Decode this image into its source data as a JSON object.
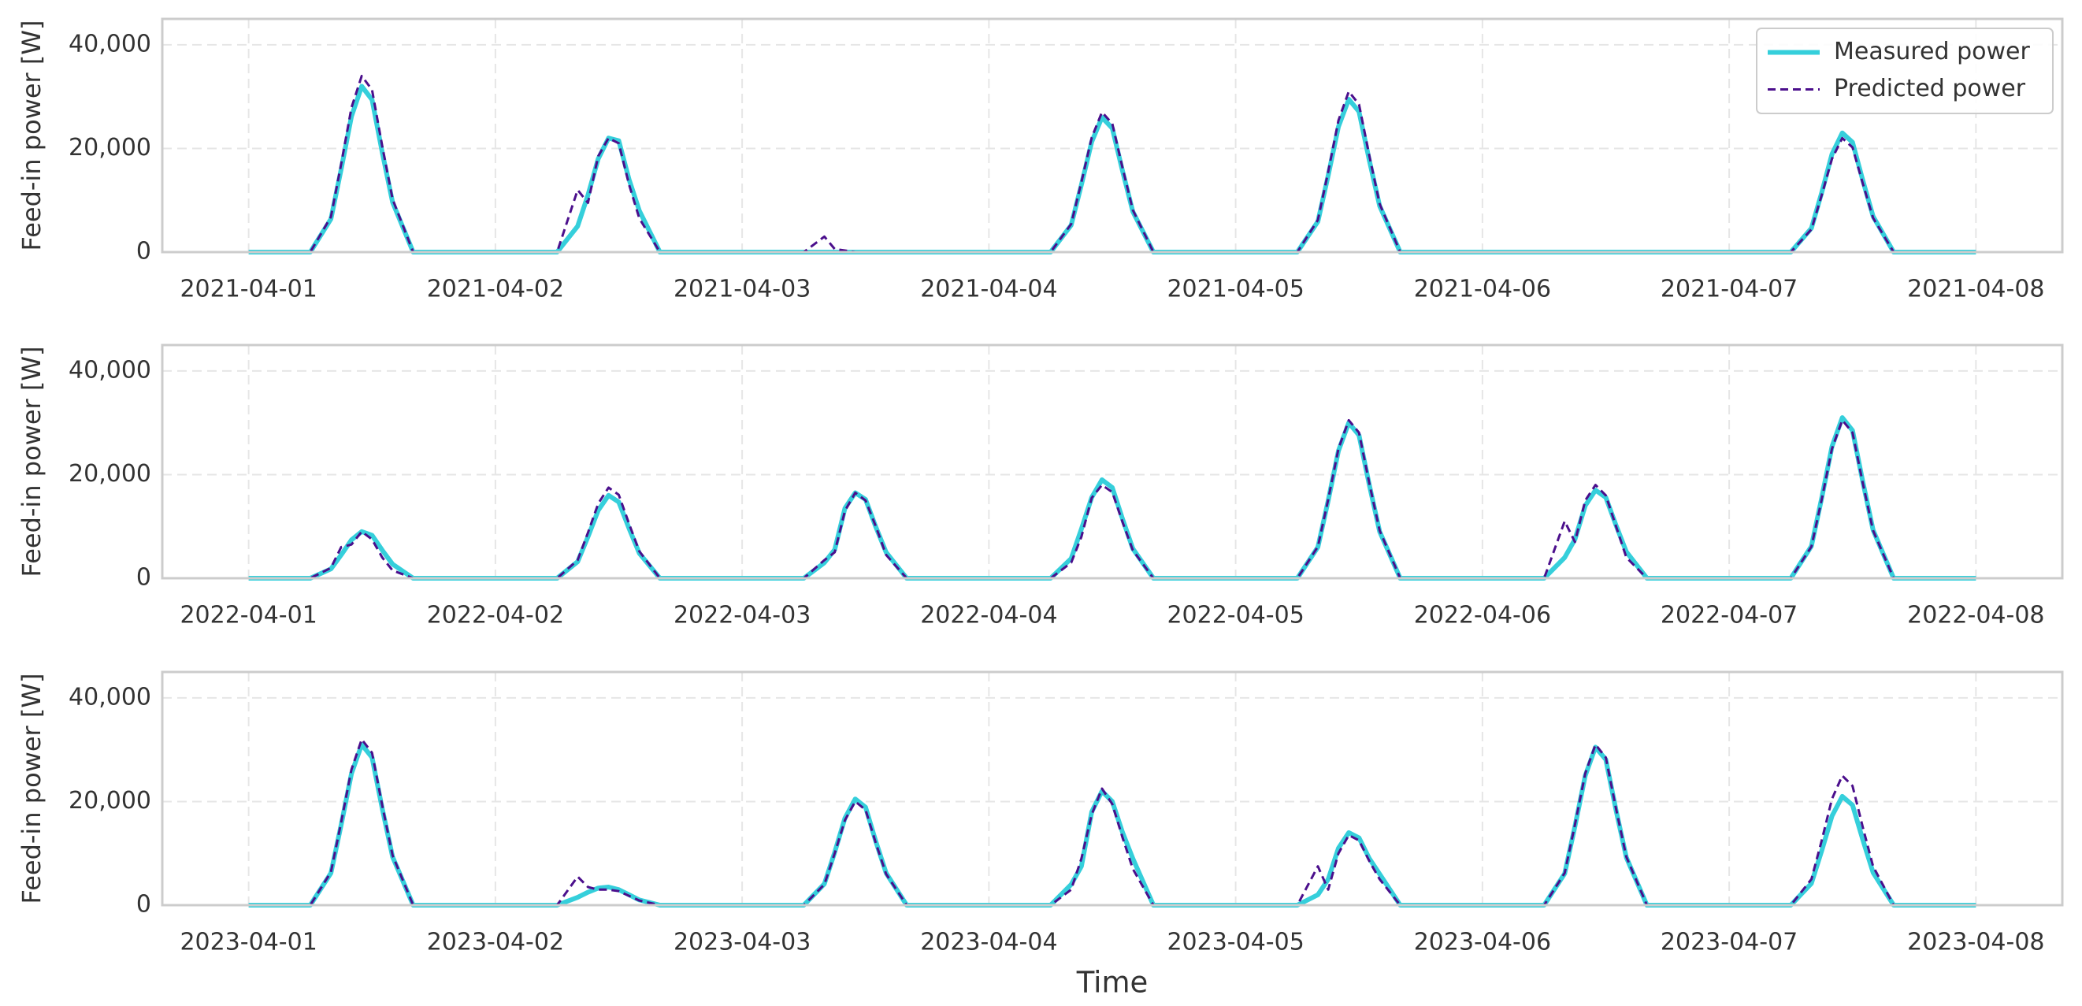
{
  "chart_data": [
    {
      "type": "line",
      "y_label": "Feed-in power [W]",
      "legend": "upper right",
      "grid": true,
      "x": [
        0,
        6,
        8,
        9,
        10,
        11,
        12,
        13,
        14,
        16,
        24,
        30,
        32,
        33,
        34,
        35,
        36,
        37,
        38,
        40,
        48,
        54,
        56,
        57,
        58,
        59,
        60,
        61,
        62,
        64,
        72,
        78,
        80,
        81,
        82,
        83,
        84,
        85,
        86,
        88,
        96,
        102,
        104,
        105,
        106,
        107,
        108,
        109,
        110,
        112,
        120,
        126,
        128,
        129,
        130,
        131,
        132,
        133,
        134,
        136,
        144,
        150,
        152,
        153,
        154,
        155,
        156,
        157,
        158,
        160,
        168
      ],
      "xlim": [
        -8.4,
        176.4
      ],
      "xticks": [
        {
          "value": 0,
          "label": "2021-04-01"
        },
        {
          "value": 24,
          "label": "2021-04-02"
        },
        {
          "value": 48,
          "label": "2021-04-03"
        },
        {
          "value": 72,
          "label": "2021-04-04"
        },
        {
          "value": 96,
          "label": "2021-04-05"
        },
        {
          "value": 120,
          "label": "2021-04-06"
        },
        {
          "value": 144,
          "label": "2021-04-07"
        },
        {
          "value": 168,
          "label": "2021-04-08"
        }
      ],
      "ylim": [
        0,
        45000
      ],
      "yticks": [
        0,
        {
          "value": 20000,
          "label": "20,000"
        },
        {
          "value": 40000,
          "label": "40,000"
        }
      ],
      "series": [
        {
          "name": "Measured power",
          "color": "#35cfdb",
          "linestyle": "solid",
          "values": [
            0,
            0,
            6400,
            16000,
            26200,
            32000,
            29400,
            19200,
            9600,
            0,
            0,
            0,
            5000,
            11000,
            18000,
            22000,
            21500,
            14000,
            8000,
            0,
            0,
            0,
            0,
            0,
            0,
            0,
            0,
            0,
            0,
            0,
            0,
            0,
            5200,
            13000,
            21300,
            26000,
            23900,
            15600,
            7800,
            0,
            0,
            0,
            5900,
            14800,
            24200,
            29500,
            27100,
            17700,
            8900,
            0,
            0,
            0,
            0,
            0,
            0,
            0,
            0,
            0,
            0,
            0,
            0,
            0,
            4600,
            11500,
            18900,
            23000,
            21200,
            13800,
            6900,
            0,
            0
          ]
        },
        {
          "name": "Predicted power",
          "color": "#4b0f8c",
          "linestyle": "dashed",
          "values": [
            0,
            0,
            6800,
            17000,
            27900,
            34000,
            31300,
            20400,
            10200,
            0,
            0,
            0,
            12000,
            9500,
            18500,
            22000,
            21000,
            13000,
            6500,
            0,
            0,
            0,
            3000,
            600,
            300,
            0,
            0,
            0,
            0,
            0,
            0,
            0,
            5400,
            13500,
            22100,
            27000,
            24800,
            16200,
            8100,
            0,
            0,
            0,
            6200,
            15500,
            25400,
            31000,
            28500,
            18600,
            9300,
            0,
            0,
            0,
            0,
            0,
            0,
            0,
            0,
            0,
            0,
            0,
            0,
            0,
            4400,
            11000,
            18000,
            22000,
            20200,
            13200,
            6600,
            0,
            0
          ]
        }
      ]
    },
    {
      "type": "line",
      "y_label": "Feed-in power [W]",
      "grid": true,
      "x": [
        0,
        6,
        8,
        9,
        10,
        11,
        12,
        13,
        14,
        16,
        24,
        30,
        32,
        33,
        34,
        35,
        36,
        37,
        38,
        40,
        48,
        54,
        56,
        57,
        58,
        59,
        60,
        61,
        62,
        64,
        72,
        78,
        80,
        81,
        82,
        83,
        84,
        85,
        86,
        88,
        96,
        102,
        104,
        105,
        106,
        107,
        108,
        109,
        110,
        112,
        120,
        126,
        128,
        129,
        130,
        131,
        132,
        133,
        134,
        136,
        144,
        150,
        152,
        153,
        154,
        155,
        156,
        157,
        158,
        160,
        168
      ],
      "xlim": [
        -8.4,
        176.4
      ],
      "xticks": [
        {
          "value": 0,
          "label": "2022-04-01"
        },
        {
          "value": 24,
          "label": "2022-04-02"
        },
        {
          "value": 48,
          "label": "2022-04-03"
        },
        {
          "value": 72,
          "label": "2022-04-04"
        },
        {
          "value": 96,
          "label": "2022-04-05"
        },
        {
          "value": 120,
          "label": "2022-04-06"
        },
        {
          "value": 144,
          "label": "2022-04-07"
        },
        {
          "value": 168,
          "label": "2022-04-08"
        }
      ],
      "ylim": [
        0,
        45000
      ],
      "yticks": [
        0,
        {
          "value": 20000,
          "label": "20,000"
        },
        {
          "value": 40000,
          "label": "40,000"
        }
      ],
      "series": [
        {
          "color": "#35cfdb",
          "linestyle": "solid",
          "values": [
            0,
            0,
            1800,
            4500,
            7400,
            9000,
            8300,
            5400,
            2700,
            0,
            0,
            0,
            3200,
            8000,
            13100,
            16000,
            14700,
            9600,
            4800,
            0,
            0,
            0,
            3000,
            5500,
            13500,
            16500,
            15200,
            9900,
            5000,
            0,
            0,
            0,
            3800,
            9500,
            15600,
            19000,
            17500,
            11400,
            5700,
            0,
            0,
            0,
            6000,
            15000,
            24600,
            30000,
            27600,
            18000,
            9000,
            0,
            0,
            0,
            4000,
            7500,
            14000,
            17000,
            15600,
            10200,
            5100,
            0,
            0,
            0,
            6200,
            15500,
            25400,
            31000,
            28500,
            18600,
            9300,
            0,
            0
          ]
        },
        {
          "color": "#4b0f8c",
          "linestyle": "dashed",
          "values": [
            0,
            0,
            2000,
            6000,
            6500,
            9000,
            7500,
            4000,
            1500,
            0,
            0,
            0,
            3500,
            8800,
            14400,
            17500,
            16100,
            10500,
            5200,
            0,
            0,
            0,
            3500,
            5000,
            13000,
            16500,
            15000,
            10000,
            4500,
            0,
            0,
            0,
            3000,
            8000,
            15500,
            18000,
            16600,
            10800,
            5400,
            0,
            0,
            0,
            6100,
            15200,
            25000,
            30500,
            28100,
            18300,
            9200,
            0,
            0,
            0,
            11000,
            7000,
            15000,
            18000,
            16000,
            10000,
            4000,
            0,
            0,
            0,
            6100,
            15200,
            25000,
            30500,
            28100,
            18300,
            9200,
            0,
            0
          ]
        }
      ]
    },
    {
      "type": "line",
      "y_label": "Feed-in power [W]",
      "x_label": "Time",
      "grid": true,
      "x": [
        0,
        6,
        8,
        9,
        10,
        11,
        12,
        13,
        14,
        16,
        24,
        30,
        32,
        33,
        34,
        35,
        36,
        37,
        38,
        40,
        48,
        54,
        56,
        57,
        58,
        59,
        60,
        61,
        62,
        64,
        72,
        78,
        80,
        81,
        82,
        83,
        84,
        85,
        86,
        88,
        96,
        102,
        104,
        105,
        106,
        107,
        108,
        109,
        110,
        112,
        120,
        126,
        128,
        129,
        130,
        131,
        132,
        133,
        134,
        136,
        144,
        150,
        152,
        153,
        154,
        155,
        156,
        157,
        158,
        160,
        168
      ],
      "xlim": [
        -8.4,
        176.4
      ],
      "xticks": [
        {
          "value": 0,
          "label": "2023-04-01"
        },
        {
          "value": 24,
          "label": "2023-04-02"
        },
        {
          "value": 48,
          "label": "2023-04-03"
        },
        {
          "value": 72,
          "label": "2023-04-04"
        },
        {
          "value": 96,
          "label": "2023-04-05"
        },
        {
          "value": 120,
          "label": "2023-04-06"
        },
        {
          "value": 144,
          "label": "2023-04-07"
        },
        {
          "value": 168,
          "label": "2023-04-08"
        }
      ],
      "ylim": [
        0,
        45000
      ],
      "yticks": [
        0,
        {
          "value": 20000,
          "label": "20,000"
        },
        {
          "value": 40000,
          "label": "40,000"
        }
      ],
      "series": [
        {
          "color": "#35cfdb",
          "linestyle": "solid",
          "values": [
            0,
            0,
            6200,
            15500,
            25400,
            31000,
            28500,
            18600,
            9300,
            0,
            0,
            0,
            1500,
            2500,
            3300,
            3500,
            3000,
            2000,
            1000,
            0,
            0,
            0,
            4100,
            10200,
            16800,
            20500,
            18900,
            12300,
            6200,
            0,
            0,
            0,
            4000,
            7500,
            18000,
            22000,
            20000,
            14000,
            9000,
            0,
            0,
            0,
            2000,
            5000,
            11000,
            14000,
            13000,
            9000,
            6000,
            0,
            0,
            0,
            6100,
            15200,
            25000,
            30500,
            28100,
            18300,
            9200,
            0,
            0,
            0,
            4200,
            10500,
            17200,
            21000,
            19300,
            12600,
            6300,
            0,
            0
          ]
        },
        {
          "color": "#4b0f8c",
          "linestyle": "dashed",
          "values": [
            0,
            0,
            6400,
            16000,
            26200,
            32000,
            29400,
            19200,
            9600,
            0,
            0,
            0,
            5500,
            3500,
            3000,
            3000,
            2700,
            1800,
            900,
            0,
            0,
            0,
            4000,
            10000,
            16400,
            20000,
            18400,
            12000,
            6000,
            0,
            0,
            0,
            3000,
            9000,
            17500,
            22500,
            19500,
            13000,
            7000,
            0,
            0,
            0,
            7500,
            3000,
            10000,
            13500,
            12500,
            8500,
            5000,
            0,
            0,
            0,
            6200,
            15500,
            25400,
            31000,
            28500,
            18600,
            9300,
            0,
            0,
            0,
            5000,
            12500,
            20500,
            25000,
            23000,
            15000,
            7500,
            0,
            0
          ]
        }
      ]
    }
  ]
}
